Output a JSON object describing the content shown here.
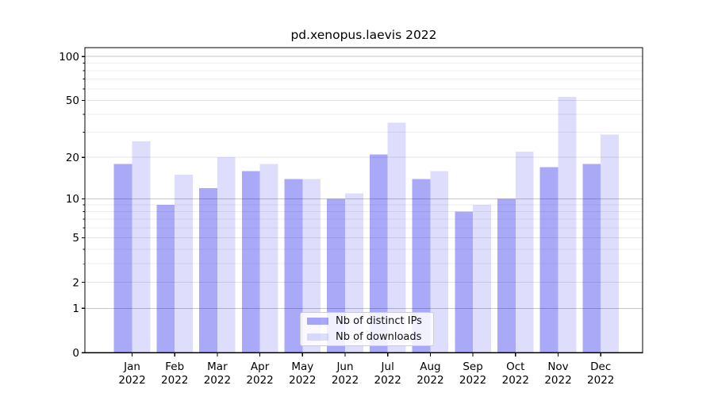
{
  "chart_data": {
    "type": "bar",
    "title": "pd.xenopus.laevis 2022",
    "categories": [
      "Jan",
      "Feb",
      "Mar",
      "Apr",
      "May",
      "Jun",
      "Jul",
      "Aug",
      "Sep",
      "Oct",
      "Nov",
      "Dec"
    ],
    "category_year": "2022",
    "series": [
      {
        "name": "Nb of distinct IPs",
        "color": "#0a0aeb",
        "alpha": 0.35,
        "values": [
          18,
          9,
          12,
          16,
          14,
          10,
          21,
          14,
          8,
          10,
          17,
          18
        ]
      },
      {
        "name": "Nb of downloads",
        "color": "#0a0aeb",
        "alpha": 0.135,
        "values": [
          26,
          15,
          20,
          18,
          14,
          11,
          35,
          16,
          9,
          22,
          53,
          29
        ]
      }
    ],
    "yscale": "log1p",
    "ylim": [
      0,
      115
    ],
    "y_major_ticks": [
      0,
      1,
      2,
      5,
      10,
      20,
      50,
      100
    ],
    "y_minor_gridlines": [
      3,
      4,
      6,
      7,
      8,
      9,
      30,
      40,
      60,
      70,
      80,
      90
    ],
    "grid": true,
    "legend_position": "lower center",
    "colors": {
      "frame": "#000000",
      "grid_power10": "#c5c5c5",
      "grid_major": "#e4e4e4",
      "grid_minor": "#eeeeee",
      "text": "#000000"
    }
  }
}
